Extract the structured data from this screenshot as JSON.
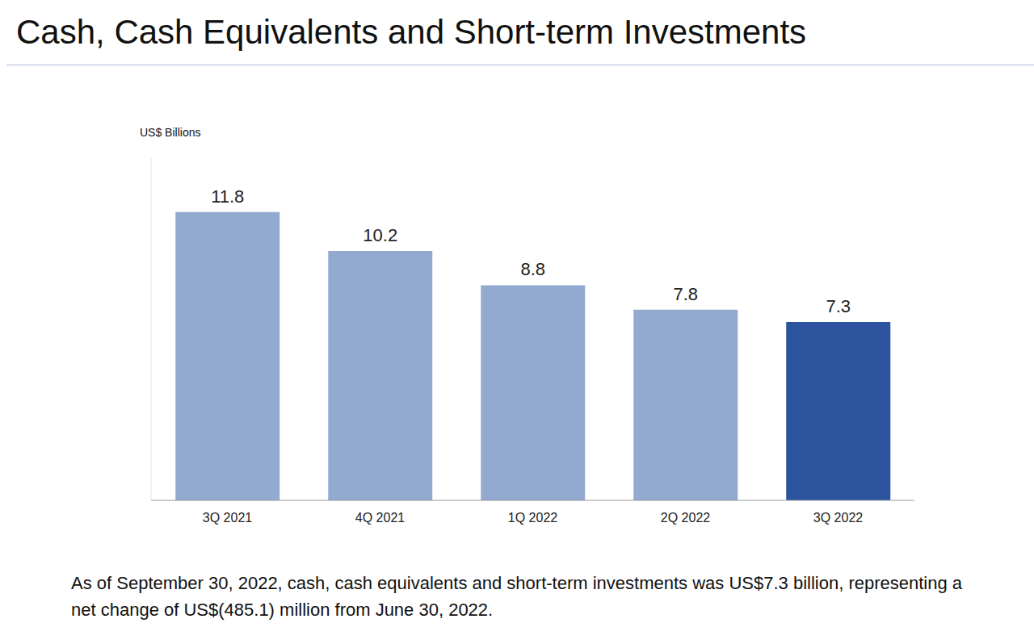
{
  "chart_data": {
    "type": "bar",
    "title": "Cash, Cash Equivalents and Short-term Investments",
    "y_label": "US$ Billions",
    "categories": [
      "3Q 2021",
      "4Q 2021",
      "1Q 2022",
      "2Q 2022",
      "3Q 2022"
    ],
    "values": [
      11.8,
      10.2,
      8.8,
      7.8,
      7.3
    ],
    "colors": [
      "#92aad0",
      "#92aad0",
      "#92aad0",
      "#92aad0",
      "#2c539e"
    ],
    "ylim": [
      0,
      14
    ],
    "yticks": [],
    "grid": false,
    "data_labels": true,
    "tick_labels": "x",
    "annotation": "As of September 30, 2022, cash, cash equivalents and short-term investments was US$7.3 billion, representing a net change of US$(485.1) million from June 30, 2022."
  }
}
